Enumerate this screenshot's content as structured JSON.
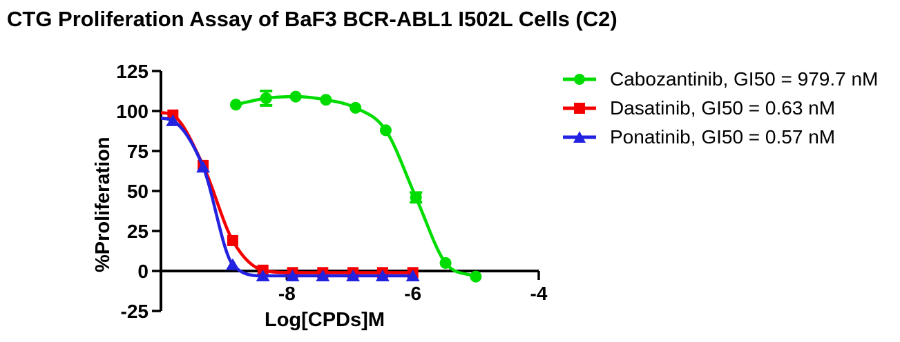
{
  "title": "CTG Proliferation Assay of BaF3 BCR-ABL1 I502L Cells (C2)",
  "legend": {
    "position": "right",
    "items": [
      {
        "label": "Cabozantinib, GI50 = 979.7 nM",
        "color": "#00DC00",
        "marker": "circle"
      },
      {
        "label": "Dasatinib, GI50 = 0.63 nM",
        "color": "#F40000",
        "marker": "square"
      },
      {
        "label": "Ponatinib, GI50 = 0.57 nM",
        "color": "#2222E0",
        "marker": "triangle"
      }
    ]
  },
  "chart_data": {
    "type": "line",
    "title": "CTG Proliferation Assay of BaF3 BCR-ABL1 I502L Cells (C2)",
    "xlabel": "Log[CPDs]M",
    "ylabel": "%Proliferation",
    "xlim": [
      -10,
      -4
    ],
    "ylim": [
      -25,
      125
    ],
    "x_ticks": [
      -8,
      -6,
      -4
    ],
    "y_ticks": [
      -25,
      0,
      25,
      50,
      75,
      100,
      125
    ],
    "grid": false,
    "legend_position": "right",
    "axis_color": "#000000",
    "series": [
      {
        "name": "Cabozantinib",
        "gi50": "979.7 nM",
        "color": "#00DC00",
        "marker": "circle",
        "points": [
          {
            "x": -8.81,
            "y": 104
          },
          {
            "x": -8.33,
            "y": 108,
            "err": 4.5
          },
          {
            "x": -7.86,
            "y": 109
          },
          {
            "x": -7.38,
            "y": 107
          },
          {
            "x": -6.91,
            "y": 102
          },
          {
            "x": -6.43,
            "y": 88
          },
          {
            "x": -5.95,
            "y": 46,
            "err": 3
          },
          {
            "x": -5.48,
            "y": 5
          },
          {
            "x": -5.0,
            "y": -3.5
          }
        ]
      },
      {
        "name": "Dasatinib",
        "gi50": "0.63 nM",
        "color": "#F40000",
        "marker": "square",
        "curve_start": {
          "x": -10.0,
          "y": 99
        },
        "points": [
          {
            "x": -9.81,
            "y": 97.5
          },
          {
            "x": -9.33,
            "y": 66
          },
          {
            "x": -8.86,
            "y": 19
          },
          {
            "x": -8.38,
            "y": 0.5
          },
          {
            "x": -7.91,
            "y": -1
          },
          {
            "x": -7.43,
            "y": -1
          },
          {
            "x": -6.95,
            "y": -1
          },
          {
            "x": -6.48,
            "y": -1
          },
          {
            "x": -6.0,
            "y": -1
          }
        ]
      },
      {
        "name": "Ponatinib",
        "gi50": "0.57 nM",
        "color": "#2222E0",
        "marker": "triangle",
        "curve_start": {
          "x": -10.0,
          "y": 95.5
        },
        "points": [
          {
            "x": -9.81,
            "y": 94
          },
          {
            "x": -9.33,
            "y": 65
          },
          {
            "x": -8.86,
            "y": 4
          },
          {
            "x": -8.38,
            "y": -3
          },
          {
            "x": -7.91,
            "y": -3
          },
          {
            "x": -7.43,
            "y": -3
          },
          {
            "x": -6.95,
            "y": -3
          },
          {
            "x": -6.48,
            "y": -3
          },
          {
            "x": -6.0,
            "y": -3
          }
        ]
      }
    ]
  }
}
